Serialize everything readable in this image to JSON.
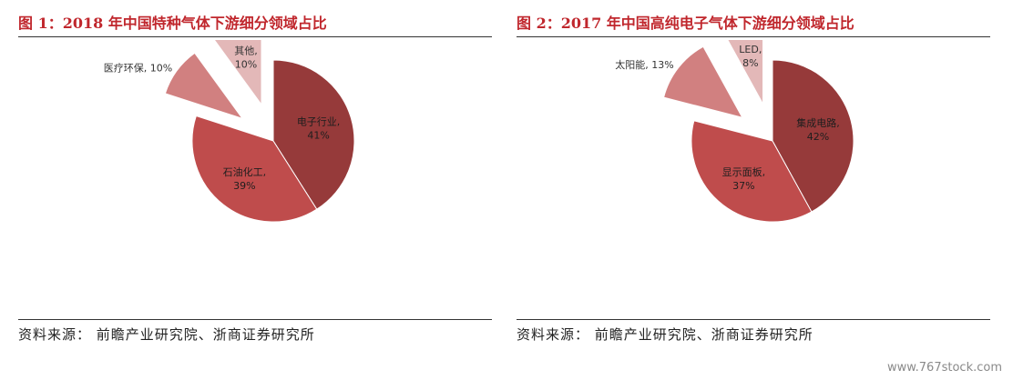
{
  "figures": [
    {
      "title": "图 1：2018 年中国特种气体下游细分领域占比",
      "source": "资料来源： 前瞻产业研究院、浙商证券研究所"
    },
    {
      "title": "图 2：2017 年中国高纯电子气体下游细分领域占比",
      "source": "资料来源： 前瞻产业研究院、浙商证券研究所"
    }
  ],
  "watermark": "www.767stock.com",
  "chart_data": [
    {
      "type": "pie",
      "title": "图 1：2018 年中国特种气体下游细分领域占比",
      "slices": [
        {
          "label": "电子行业",
          "value": 41,
          "display": "41%",
          "color": "#963a3a",
          "exploded": false
        },
        {
          "label": "石油化工",
          "value": 39,
          "display": "39%",
          "color": "#bf4c4c",
          "exploded": false
        },
        {
          "label": "医疗环保",
          "value": 10,
          "display": "10%",
          "color": "#d18080",
          "exploded": true
        },
        {
          "label": "其他",
          "value": 10,
          "display": "10%",
          "color": "#e3b8b8",
          "exploded": true
        }
      ],
      "label_style": [
        "inside",
        "inside",
        "outside",
        "inside-stacked"
      ],
      "start": "12 o'clock, clockwise",
      "legend": "none"
    },
    {
      "type": "pie",
      "title": "图 2：2017 年中国高纯电子气体下游细分领域占比",
      "slices": [
        {
          "label": "集成电路",
          "value": 42,
          "display": "42%",
          "color": "#963a3a",
          "exploded": false
        },
        {
          "label": "显示面板",
          "value": 37,
          "display": "37%",
          "color": "#bf4c4c",
          "exploded": false
        },
        {
          "label": "太阳能",
          "value": 13,
          "display": "13%",
          "color": "#d18080",
          "exploded": true
        },
        {
          "label": "LED",
          "value": 8,
          "display": "8%",
          "color": "#e3b8b8",
          "exploded": true
        }
      ],
      "label_style": [
        "inside",
        "inside",
        "outside",
        "inside-stacked"
      ],
      "start": "12 o'clock, clockwise",
      "legend": "none"
    }
  ]
}
